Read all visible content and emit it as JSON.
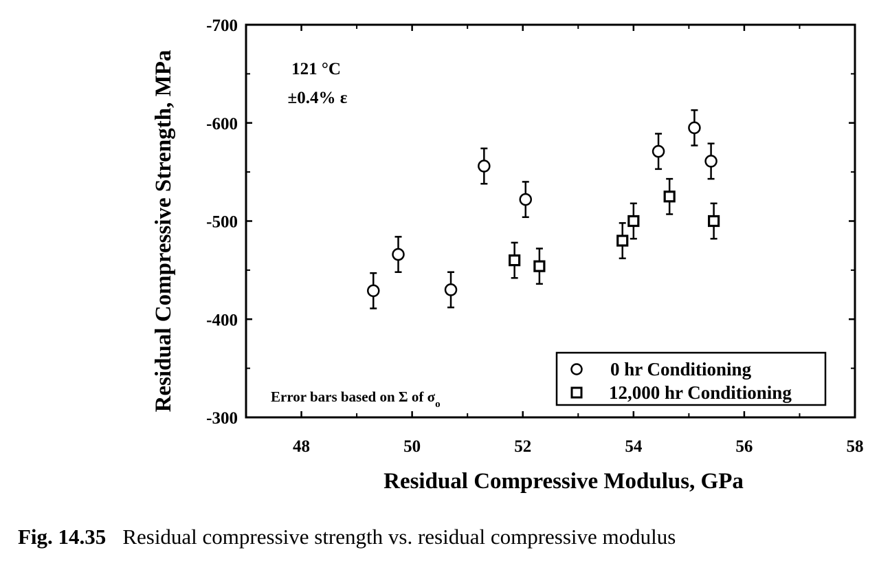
{
  "caption": {
    "number": "Fig. 14.35",
    "text": "Residual compressive strength vs. residual compressive modulus"
  },
  "chart_data": {
    "type": "scatter",
    "title": "",
    "xlabel": "Residual Compressive Modulus, GPa",
    "ylabel": "Residual Compressive Strength, MPa",
    "xlim": [
      47,
      58
    ],
    "ylim": [
      -300,
      -700
    ],
    "x_ticks": [
      48,
      50,
      52,
      54,
      56,
      58
    ],
    "y_ticks": [
      -300,
      -400,
      -500,
      -600,
      -700
    ],
    "grid": false,
    "legend_position": "bottom-right",
    "annotations": {
      "temperature": "121 °C",
      "strain": "±0.4% ε",
      "error_note": "Error bars based on Σ of σ",
      "error_note_sub": "o"
    },
    "series": [
      {
        "name": "0 hr Conditioning",
        "marker": "circle",
        "points": [
          {
            "x": 49.3,
            "y": -429,
            "err": 18
          },
          {
            "x": 49.75,
            "y": -466,
            "err": 18
          },
          {
            "x": 50.7,
            "y": -430,
            "err": 18
          },
          {
            "x": 51.3,
            "y": -556,
            "err": 18
          },
          {
            "x": 52.05,
            "y": -522,
            "err": 18
          },
          {
            "x": 54.45,
            "y": -571,
            "err": 18
          },
          {
            "x": 55.1,
            "y": -595,
            "err": 18
          },
          {
            "x": 55.4,
            "y": -561,
            "err": 18
          }
        ]
      },
      {
        "name": "12,000 hr Conditioning",
        "marker": "square",
        "points": [
          {
            "x": 51.85,
            "y": -460,
            "err": 18
          },
          {
            "x": 52.3,
            "y": -454,
            "err": 18
          },
          {
            "x": 53.8,
            "y": -480,
            "err": 18
          },
          {
            "x": 54.0,
            "y": -500,
            "err": 18
          },
          {
            "x": 54.65,
            "y": -525,
            "err": 18
          },
          {
            "x": 55.45,
            "y": -500,
            "err": 18
          }
        ]
      }
    ]
  }
}
